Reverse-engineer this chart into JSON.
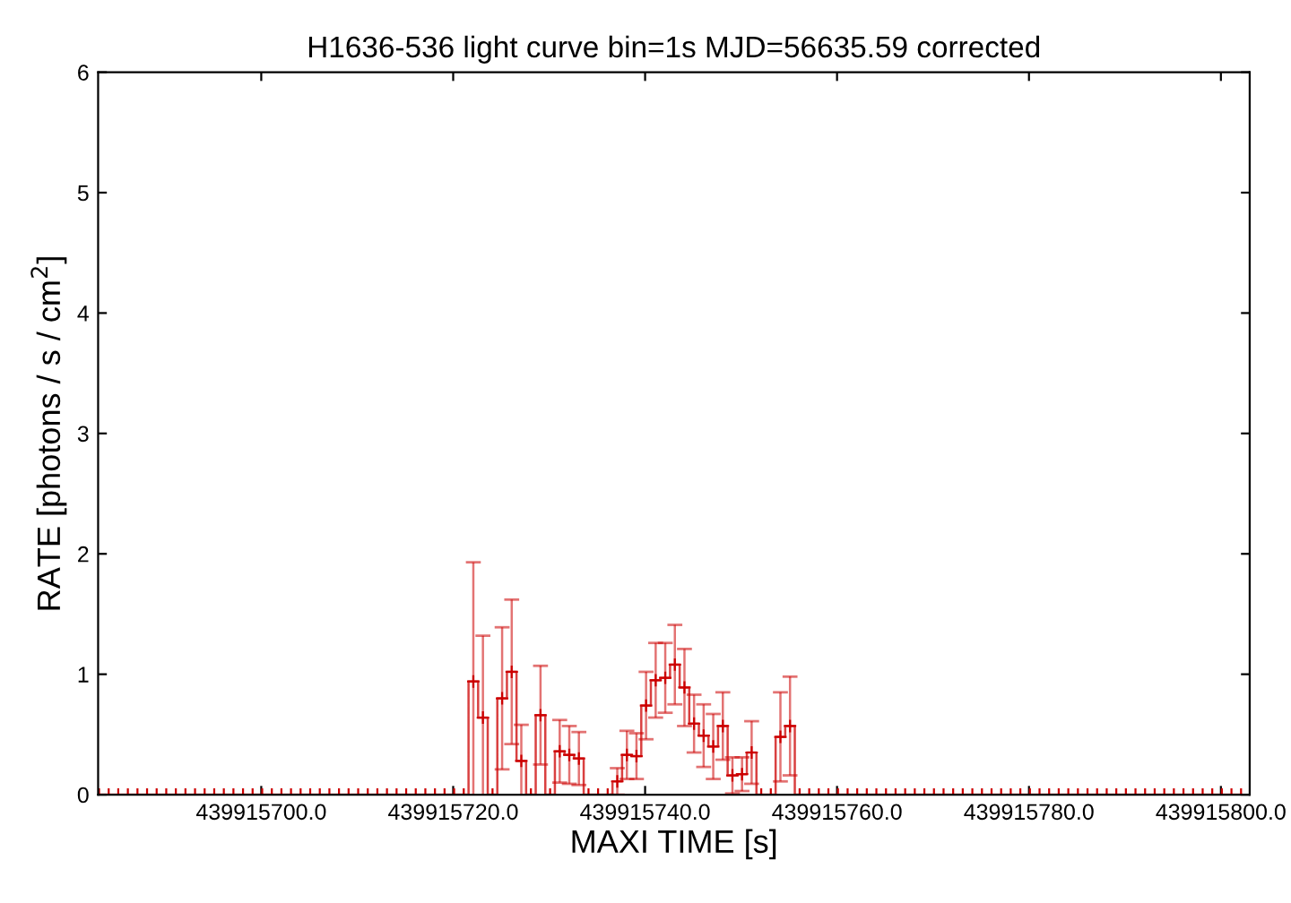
{
  "chart_data": {
    "type": "step",
    "title": "H1636-536 light curve bin=1s MJD=56635.59 corrected",
    "xlabel": "MAXI TIME [s]",
    "ylabel": "RATE [photons / s / cm$^{2}$]",
    "x": [
      439915683.1,
      439915684.1,
      439915685.1,
      439915686.1,
      439915687.1,
      439915688.1,
      439915689.1,
      439915690.1,
      439915691.1,
      439915692.1,
      439915693.1,
      439915694.1,
      439915695.1,
      439915696.1,
      439915697.1,
      439915698.1,
      439915699.1,
      439915700.1,
      439915701.1,
      439915702.1,
      439915703.1,
      439915704.1,
      439915705.1,
      439915706.1,
      439915707.1,
      439915708.1,
      439915709.1,
      439915710.1,
      439915711.1,
      439915712.1,
      439915713.1,
      439915714.1,
      439915715.1,
      439915716.1,
      439915717.1,
      439915718.1,
      439915719.1,
      439915720.1,
      439915721.1,
      439915722.1,
      439915723.1,
      439915724.1,
      439915725.1,
      439915726.1,
      439915727.1,
      439915728.1,
      439915729.1,
      439915730.1,
      439915731.1,
      439915732.1,
      439915733.1,
      439915734.1,
      439915735.1,
      439915736.1,
      439915737.1,
      439915738.1,
      439915739.1,
      439915740.1,
      439915741.1,
      439915742.1,
      439915743.1,
      439915744.1,
      439915745.1,
      439915746.1,
      439915747.1,
      439915748.1,
      439915749.1,
      439915750.1,
      439915751.1,
      439915752.1,
      439915753.1,
      439915754.1,
      439915755.1,
      439915756.1,
      439915757.1,
      439915758.1,
      439915759.1,
      439915760.1,
      439915761.1,
      439915762.1,
      439915763.1,
      439915764.1,
      439915765.1,
      439915766.1,
      439915767.1,
      439915768.1,
      439915769.1,
      439915770.1,
      439915771.1,
      439915772.1,
      439915773.1,
      439915774.1,
      439915775.1,
      439915776.1,
      439915777.1,
      439915778.1,
      439915779.1,
      439915780.1,
      439915781.1,
      439915782.1,
      439915783.1,
      439915784.1,
      439915785.1,
      439915786.1,
      439915787.1,
      439915788.1,
      439915789.1,
      439915790.1,
      439915791.1,
      439915792.1,
      439915793.1,
      439915794.1,
      439915795.1,
      439915796.1,
      439915797.1,
      439915798.1,
      439915799.1,
      439915800.1,
      439915801.1,
      439915802.1
    ],
    "series": [
      {
        "color": "#cc0000",
        "values": [
          0,
          0,
          0,
          0,
          0,
          0,
          0,
          0,
          0,
          0,
          0,
          0,
          0,
          0,
          0,
          0,
          0,
          0,
          0,
          0,
          0,
          0,
          0,
          0,
          0,
          0,
          0,
          0,
          0,
          0,
          0,
          0,
          0,
          0,
          0,
          0,
          0,
          0,
          0,
          0.94,
          0.64,
          0,
          0.8,
          1.02,
          0.28,
          0,
          0.66,
          0,
          0.36,
          0.33,
          0.3,
          0,
          0,
          0,
          0.11,
          0.33,
          0.32,
          0.74,
          0.95,
          0.97,
          1.08,
          0.89,
          0.59,
          0.49,
          0.4,
          0.57,
          0.16,
          0.17,
          0.35,
          0,
          0,
          0.48,
          0.57,
          0,
          0,
          0,
          0,
          0,
          0,
          0,
          0,
          0,
          0,
          0,
          0,
          0,
          0,
          0,
          0,
          0,
          0,
          0,
          0,
          0,
          0,
          0,
          0,
          0,
          0,
          0,
          0,
          0,
          0,
          0,
          0,
          0,
          0,
          0,
          0,
          0,
          0,
          0,
          0,
          0,
          0,
          0,
          0,
          0,
          0,
          0
        ],
        "errors": [
          null,
          null,
          null,
          null,
          null,
          null,
          null,
          null,
          null,
          null,
          null,
          null,
          null,
          null,
          null,
          null,
          null,
          null,
          null,
          null,
          null,
          null,
          null,
          null,
          null,
          null,
          null,
          null,
          null,
          null,
          null,
          null,
          null,
          null,
          null,
          null,
          null,
          null,
          null,
          0.99,
          0.68,
          null,
          0.59,
          0.6,
          0.3,
          null,
          0.41,
          null,
          0.26,
          0.24,
          0.22,
          null,
          null,
          null,
          0.11,
          0.2,
          0.19,
          0.28,
          0.31,
          0.29,
          0.33,
          0.32,
          0.24,
          0.26,
          0.27,
          0.28,
          0.15,
          0.14,
          0.26,
          null,
          null,
          0.37,
          0.41,
          null,
          null,
          null,
          null,
          null,
          null,
          null,
          null,
          null,
          null,
          null,
          null,
          null,
          null,
          null,
          null,
          null,
          null,
          null,
          null,
          null,
          null,
          null,
          null,
          null,
          null,
          null,
          null,
          null,
          null,
          null,
          null,
          null,
          null,
          null,
          null,
          null,
          null,
          null,
          null,
          null,
          null,
          null,
          null,
          null,
          null,
          null
        ]
      }
    ],
    "xlim": [
      439915683,
      439915803
    ],
    "xticks": [
      {
        "value": 439915700,
        "label": "439915700.0"
      },
      {
        "value": 439915720,
        "label": "439915720.0"
      },
      {
        "value": 439915740,
        "label": "439915740.0"
      },
      {
        "value": 439915760,
        "label": "439915760.0"
      },
      {
        "value": 439915780,
        "label": "439915780.0"
      },
      {
        "value": 439915800,
        "label": "439915800.0"
      }
    ],
    "ylim": [
      0,
      6
    ],
    "yticks": [
      0,
      1,
      2,
      3,
      4,
      5,
      6
    ],
    "marker": "cross",
    "grid": false,
    "legend": false
  }
}
